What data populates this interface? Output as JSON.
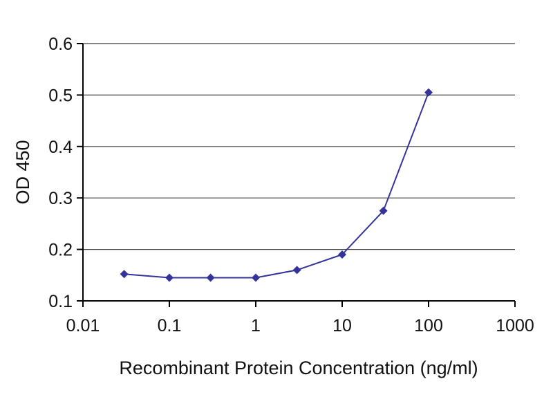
{
  "chart_data": {
    "type": "line",
    "title": "",
    "xlabel": "Recombinant Protein Concentration (ng/ml)",
    "ylabel": "OD 450",
    "x_scale": "log",
    "y_scale": "linear",
    "xlim": [
      0.01,
      1000
    ],
    "ylim": [
      0.1,
      0.6
    ],
    "x_ticks": [
      0.01,
      0.1,
      1,
      10,
      100,
      1000
    ],
    "x_tick_labels": [
      "0.01",
      "0.1",
      "1",
      "10",
      "100",
      "1000"
    ],
    "y_ticks": [
      0.1,
      0.2,
      0.3,
      0.4,
      0.5,
      0.6
    ],
    "y_tick_labels": [
      "0.1",
      "0.2",
      "0.3",
      "0.4",
      "0.5",
      "0.6"
    ],
    "grid": "horizontal-only",
    "legend": "none",
    "colors": {
      "axis": "#000000",
      "grid": "#3d3d3d",
      "background": "#ffffff"
    },
    "series": [
      {
        "name": "OD 450",
        "color": "#333399",
        "marker": "diamond",
        "x": [
          0.03,
          0.1,
          0.3,
          1,
          3,
          10,
          30,
          100
        ],
        "y": [
          0.152,
          0.145,
          0.145,
          0.145,
          0.16,
          0.19,
          0.275,
          0.505
        ]
      }
    ]
  }
}
